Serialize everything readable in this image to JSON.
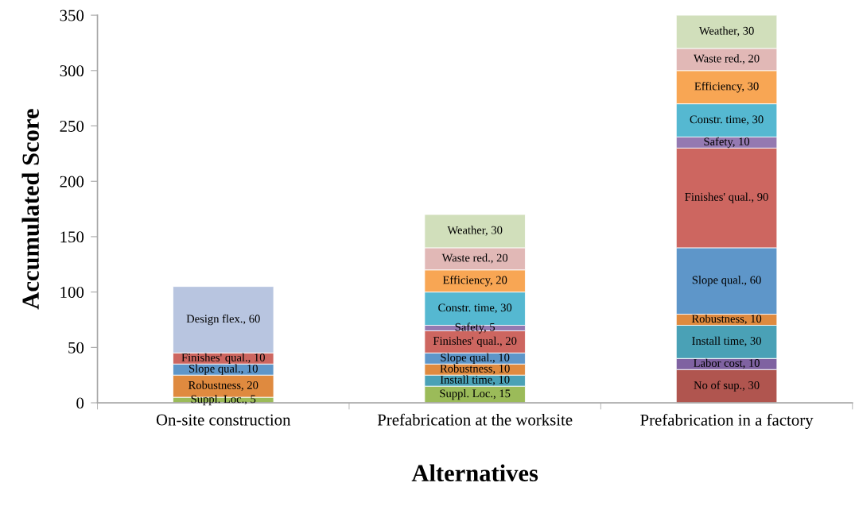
{
  "chart_data": {
    "type": "bar",
    "stacked": true,
    "xlabel": "Alternatives",
    "ylabel": "Accumulated Score",
    "categories": [
      "On-site construction",
      "Prefabrication at the worksite",
      "Prefabrication in a factory"
    ],
    "ylim": [
      0,
      350
    ],
    "yticks": [
      0,
      50,
      100,
      150,
      200,
      250,
      300,
      350
    ],
    "grid": false,
    "series": [
      {
        "color": "#9bbb59",
        "values": [
          5,
          15,
          null
        ],
        "value_labels": [
          "Suppl. Loc., 5",
          "Suppl. Loc., 15",
          null
        ]
      },
      {
        "color": "#b0554f",
        "values": [
          null,
          null,
          30
        ],
        "value_labels": [
          null,
          null,
          "No of sup., 30"
        ]
      },
      {
        "color": "#7f62a1",
        "values": [
          null,
          null,
          10
        ],
        "value_labels": [
          null,
          null,
          "Labor cost, 10"
        ]
      },
      {
        "color": "#4aa1b6",
        "values": [
          null,
          10,
          30
        ],
        "value_labels": [
          null,
          "Install time, 10",
          "Install time, 30"
        ]
      },
      {
        "color": "#df8a3f",
        "values": [
          20,
          10,
          10
        ],
        "value_labels": [
          "Robustness, 20",
          "Robustness, 10",
          "Robustness, 10"
        ]
      },
      {
        "color": "#5e96c9",
        "values": [
          10,
          10,
          60
        ],
        "value_labels": [
          "Slope qual., 10",
          "Slope qual., 10",
          "Slope qual., 60"
        ]
      },
      {
        "color": "#cd6660",
        "values": [
          10,
          20,
          90
        ],
        "value_labels": [
          "Finishes' qual., 10",
          "Finishes' qual., 20",
          "Finishes' qual., 90"
        ]
      },
      {
        "color": "#b8c5e0",
        "values": [
          60,
          null,
          null
        ],
        "value_labels": [
          "Design flex., 60",
          null,
          null
        ]
      },
      {
        "color": "#9479b1",
        "values": [
          null,
          5,
          10
        ],
        "value_labels": [
          null,
          "Safety, 5",
          "Safety, 10"
        ]
      },
      {
        "color": "#55b8d1",
        "values": [
          null,
          30,
          30
        ],
        "value_labels": [
          null,
          "Constr. time, 30",
          "Constr. time, 30"
        ]
      },
      {
        "color": "#f8a654",
        "values": [
          null,
          20,
          30
        ],
        "value_labels": [
          null,
          "Efficiency, 20",
          "Efficiency, 30"
        ]
      },
      {
        "color": "#e1b8b6",
        "values": [
          null,
          20,
          20
        ],
        "value_labels": [
          null,
          "Waste red., 20",
          "Waste red., 20"
        ]
      },
      {
        "color": "#d1dfbb",
        "values": [
          null,
          30,
          30
        ],
        "value_labels": [
          null,
          "Weather, 30",
          "Weather, 30"
        ]
      }
    ]
  }
}
